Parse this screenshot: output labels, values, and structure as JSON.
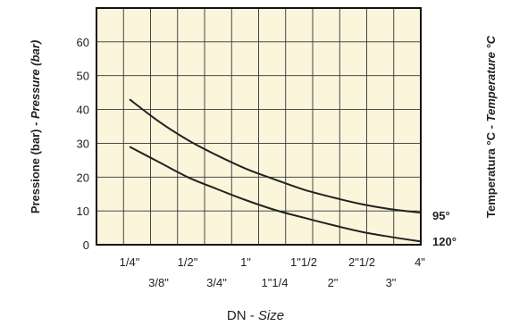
{
  "chart_data": {
    "type": "line",
    "ylabel": {
      "it": "Pressione (bar) - ",
      "en": "Pressure (bar)"
    },
    "xlabel": {
      "it": "DN - ",
      "en": "Size"
    },
    "right_label": {
      "it": "Temperatura °C - ",
      "en": "Temperature °C"
    },
    "ylim": [
      0,
      70
    ],
    "yticks": [
      0,
      10,
      20,
      30,
      40,
      50,
      60
    ],
    "grid": true,
    "background_color": "#fbf5dc",
    "line_color": "#222222",
    "x_sizes": [
      "1/4\"",
      "3/8\"",
      "1/2\"",
      "3/4\"",
      "1\"",
      "1\"1/4",
      "1\"1/2",
      "2\"",
      "2\"1/2",
      "3\"",
      "4\""
    ],
    "x": [
      0,
      1,
      2,
      3,
      4,
      5,
      6,
      7,
      8,
      9,
      10
    ],
    "series": [
      {
        "name": "95°",
        "values": [
          43,
          36.5,
          31,
          26.5,
          22.5,
          19.3,
          16.3,
          14,
          12,
          10.5,
          9.5
        ]
      },
      {
        "name": "120°",
        "values": [
          29,
          24.5,
          20,
          16.5,
          13.2,
          10.3,
          8,
          5.8,
          3.8,
          2.3,
          1
        ]
      }
    ]
  }
}
